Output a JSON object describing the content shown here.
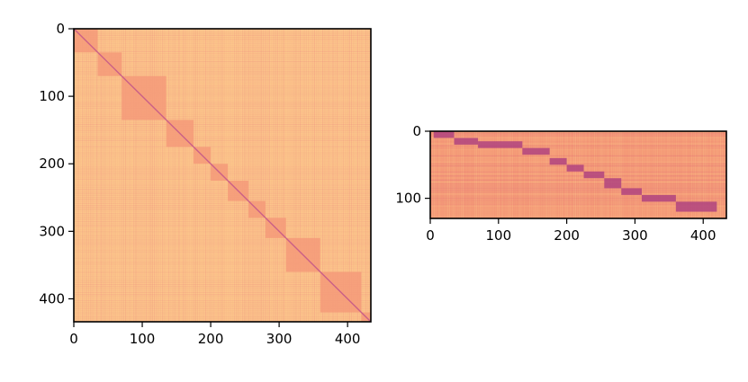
{
  "chart_data": [
    {
      "type": "heatmap",
      "title": "",
      "xlabel": "",
      "ylabel": "",
      "grid": false,
      "colormap": "magma (light range)",
      "x_range": [
        0,
        434
      ],
      "y_range": [
        0,
        434
      ],
      "y_inverted": true,
      "x_ticks": [
        0,
        100,
        200,
        300,
        400
      ],
      "y_ticks": [
        0,
        100,
        200,
        300,
        400
      ],
      "x_tick_labels": [
        "0",
        "100",
        "200",
        "300",
        "400"
      ],
      "y_tick_labels": [
        "0",
        "100",
        "200",
        "300",
        "400"
      ],
      "diagonal_blocks": [
        [
          0,
          35
        ],
        [
          35,
          70
        ],
        [
          70,
          135
        ],
        [
          135,
          175
        ],
        [
          175,
          200
        ],
        [
          200,
          225
        ],
        [
          225,
          255
        ],
        [
          255,
          280
        ],
        [
          280,
          310
        ],
        [
          310,
          360
        ],
        [
          360,
          420
        ],
        [
          420,
          434
        ]
      ],
      "colors": {
        "background": "#fcc78b",
        "block": "#f49a79",
        "diagonal": "#c0508a"
      }
    },
    {
      "type": "heatmap",
      "title": "",
      "xlabel": "",
      "ylabel": "",
      "grid": false,
      "colormap": "magma (light range)",
      "x_range": [
        0,
        434
      ],
      "y_range": [
        0,
        130
      ],
      "y_inverted": true,
      "x_ticks": [
        0,
        100,
        200,
        300,
        400
      ],
      "y_ticks": [
        0,
        100
      ],
      "x_tick_labels": [
        "0",
        "100",
        "200",
        "300",
        "400"
      ],
      "y_tick_labels": [
        "0",
        "100"
      ],
      "diagonal_segments": [
        {
          "x": [
            5,
            35
          ],
          "y": [
            0,
            10
          ]
        },
        {
          "x": [
            35,
            70
          ],
          "y": [
            10,
            20
          ]
        },
        {
          "x": [
            70,
            135
          ],
          "y": [
            15,
            25
          ]
        },
        {
          "x": [
            135,
            175
          ],
          "y": [
            25,
            35
          ]
        },
        {
          "x": [
            175,
            200
          ],
          "y": [
            40,
            50
          ]
        },
        {
          "x": [
            200,
            225
          ],
          "y": [
            50,
            60
          ]
        },
        {
          "x": [
            225,
            255
          ],
          "y": [
            60,
            70
          ]
        },
        {
          "x": [
            255,
            280
          ],
          "y": [
            70,
            85
          ]
        },
        {
          "x": [
            280,
            310
          ],
          "y": [
            85,
            95
          ]
        },
        {
          "x": [
            310,
            360
          ],
          "y": [
            95,
            105
          ]
        },
        {
          "x": [
            360,
            420
          ],
          "y": [
            105,
            120
          ]
        }
      ],
      "colors": {
        "background": "#f49676",
        "light": "#fbc48a",
        "dark": "#b0437f"
      }
    }
  ]
}
